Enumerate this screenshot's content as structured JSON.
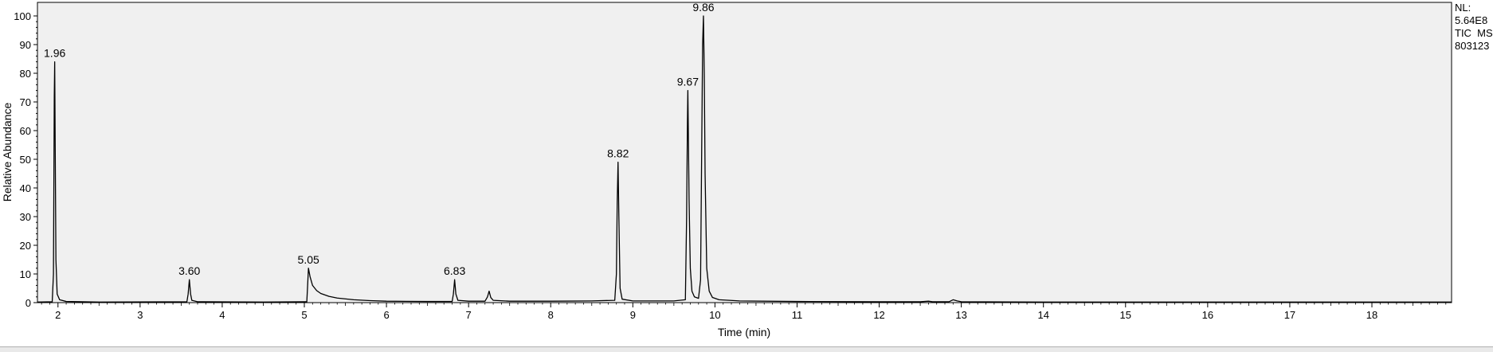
{
  "header": {
    "lines": [
      "NL:",
      "5.64E8",
      "TIC  MS",
      "803123"
    ]
  },
  "chart_data": {
    "type": "line",
    "xlabel": "Time (min)",
    "ylabel": "Relative Abundance",
    "xlim": [
      1.75,
      18.97
    ],
    "ylim": [
      0,
      100
    ],
    "x_ticks": [
      2,
      3,
      4,
      5,
      6,
      7,
      8,
      9,
      10,
      11,
      12,
      13,
      14,
      15,
      16,
      17,
      18
    ],
    "y_ticks": [
      0,
      10,
      20,
      30,
      40,
      50,
      60,
      70,
      80,
      90,
      100
    ],
    "plot_background": "#f0f0f0",
    "line_color": "#000000",
    "grid": false,
    "peak_labels": [
      {
        "x": 1.96,
        "y": 84,
        "text": "1.96"
      },
      {
        "x": 3.6,
        "y": 8,
        "text": "3.60"
      },
      {
        "x": 5.05,
        "y": 12,
        "text": "5.05"
      },
      {
        "x": 6.83,
        "y": 8,
        "text": "6.83"
      },
      {
        "x": 8.82,
        "y": 49,
        "text": "8.82"
      },
      {
        "x": 9.67,
        "y": 74,
        "text": "9.67"
      },
      {
        "x": 9.86,
        "y": 100,
        "text": "9.86"
      }
    ],
    "trace": [
      [
        1.75,
        0.2
      ],
      [
        1.93,
        0.3
      ],
      [
        1.945,
        10
      ],
      [
        1.955,
        72
      ],
      [
        1.96,
        84
      ],
      [
        1.965,
        60
      ],
      [
        1.975,
        15
      ],
      [
        1.99,
        3
      ],
      [
        2.02,
        1
      ],
      [
        2.1,
        0.4
      ],
      [
        2.5,
        0.2
      ],
      [
        3.57,
        0.3
      ],
      [
        3.585,
        3
      ],
      [
        3.6,
        8
      ],
      [
        3.615,
        3
      ],
      [
        3.63,
        0.8
      ],
      [
        3.7,
        0.3
      ],
      [
        4.5,
        0.2
      ],
      [
        5.03,
        0.3
      ],
      [
        5.04,
        6
      ],
      [
        5.05,
        12
      ],
      [
        5.07,
        9
      ],
      [
        5.1,
        6
      ],
      [
        5.15,
        4.2
      ],
      [
        5.2,
        3.2
      ],
      [
        5.3,
        2.2
      ],
      [
        5.4,
        1.6
      ],
      [
        5.6,
        1.0
      ],
      [
        5.8,
        0.7
      ],
      [
        6.0,
        0.5
      ],
      [
        6.5,
        0.4
      ],
      [
        6.8,
        0.4
      ],
      [
        6.815,
        3
      ],
      [
        6.83,
        8
      ],
      [
        6.845,
        3
      ],
      [
        6.87,
        0.8
      ],
      [
        7.0,
        0.5
      ],
      [
        7.2,
        0.5
      ],
      [
        7.23,
        2
      ],
      [
        7.25,
        4
      ],
      [
        7.27,
        1.8
      ],
      [
        7.3,
        0.8
      ],
      [
        7.5,
        0.5
      ],
      [
        8.0,
        0.5
      ],
      [
        8.5,
        0.6
      ],
      [
        8.78,
        0.8
      ],
      [
        8.8,
        10
      ],
      [
        8.81,
        35
      ],
      [
        8.82,
        49
      ],
      [
        8.83,
        30
      ],
      [
        8.845,
        5
      ],
      [
        8.87,
        1.2
      ],
      [
        9.0,
        0.6
      ],
      [
        9.5,
        0.6
      ],
      [
        9.64,
        1
      ],
      [
        9.655,
        30
      ],
      [
        9.665,
        63
      ],
      [
        9.67,
        74
      ],
      [
        9.675,
        62
      ],
      [
        9.685,
        36
      ],
      [
        9.7,
        12
      ],
      [
        9.72,
        4
      ],
      [
        9.75,
        2
      ],
      [
        9.8,
        1.5
      ],
      [
        9.825,
        8
      ],
      [
        9.84,
        58
      ],
      [
        9.85,
        90
      ],
      [
        9.86,
        100
      ],
      [
        9.87,
        80
      ],
      [
        9.88,
        45
      ],
      [
        9.9,
        12
      ],
      [
        9.93,
        4
      ],
      [
        9.97,
        1.8
      ],
      [
        10.05,
        1
      ],
      [
        10.3,
        0.6
      ],
      [
        11,
        0.4
      ],
      [
        12,
        0.3
      ],
      [
        12.5,
        0.3
      ],
      [
        12.6,
        0.5
      ],
      [
        12.65,
        0.3
      ],
      [
        12.85,
        0.3
      ],
      [
        12.9,
        1.0
      ],
      [
        12.95,
        0.6
      ],
      [
        13.0,
        0.3
      ],
      [
        14,
        0.2
      ],
      [
        16,
        0.2
      ],
      [
        18.97,
        0.2
      ]
    ]
  }
}
